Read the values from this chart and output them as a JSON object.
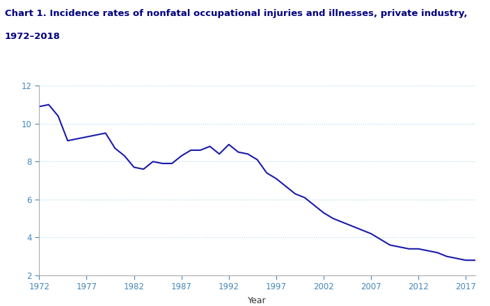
{
  "title_line1": "Chart 1. Incidence rates of nonfatal occupational injuries and illnesses, private industry,",
  "title_line2": "1972–2018",
  "xlabel": "Year",
  "years": [
    1972,
    1973,
    1974,
    1975,
    1976,
    1977,
    1978,
    1979,
    1980,
    1981,
    1982,
    1983,
    1984,
    1985,
    1986,
    1987,
    1988,
    1989,
    1990,
    1991,
    1992,
    1993,
    1994,
    1995,
    1996,
    1997,
    1998,
    1999,
    2000,
    2001,
    2002,
    2003,
    2004,
    2005,
    2006,
    2007,
    2008,
    2009,
    2010,
    2011,
    2012,
    2013,
    2014,
    2015,
    2016,
    2017,
    2018
  ],
  "values": [
    10.9,
    11.0,
    10.4,
    9.1,
    9.2,
    9.3,
    9.4,
    9.5,
    8.7,
    8.3,
    7.7,
    7.6,
    8.0,
    7.9,
    7.9,
    8.3,
    8.6,
    8.6,
    8.8,
    8.4,
    8.9,
    8.5,
    8.4,
    8.1,
    7.4,
    7.1,
    6.7,
    6.3,
    6.1,
    5.7,
    5.3,
    5.0,
    4.8,
    4.6,
    4.4,
    4.2,
    3.9,
    3.6,
    3.5,
    3.4,
    3.4,
    3.3,
    3.2,
    3.0,
    2.9,
    2.8,
    2.8
  ],
  "line_color": "#1a1aaa",
  "line_width": 1.5,
  "ylim": [
    2,
    12
  ],
  "yticks": [
    2,
    4,
    6,
    8,
    10,
    12
  ],
  "xticks": [
    1972,
    1977,
    1982,
    1987,
    1992,
    1997,
    2002,
    2007,
    2012,
    2017
  ],
  "grid_color": "#add8e6",
  "grid_style": "dotted",
  "background_color": "#ffffff",
  "title_fontsize": 9.5,
  "title_color": "#000080",
  "axis_color": "#aaaaaa",
  "tick_color": "#4488bb",
  "tick_fontsize": 8.5,
  "xlabel_fontsize": 9,
  "xlabel_color": "#333333"
}
